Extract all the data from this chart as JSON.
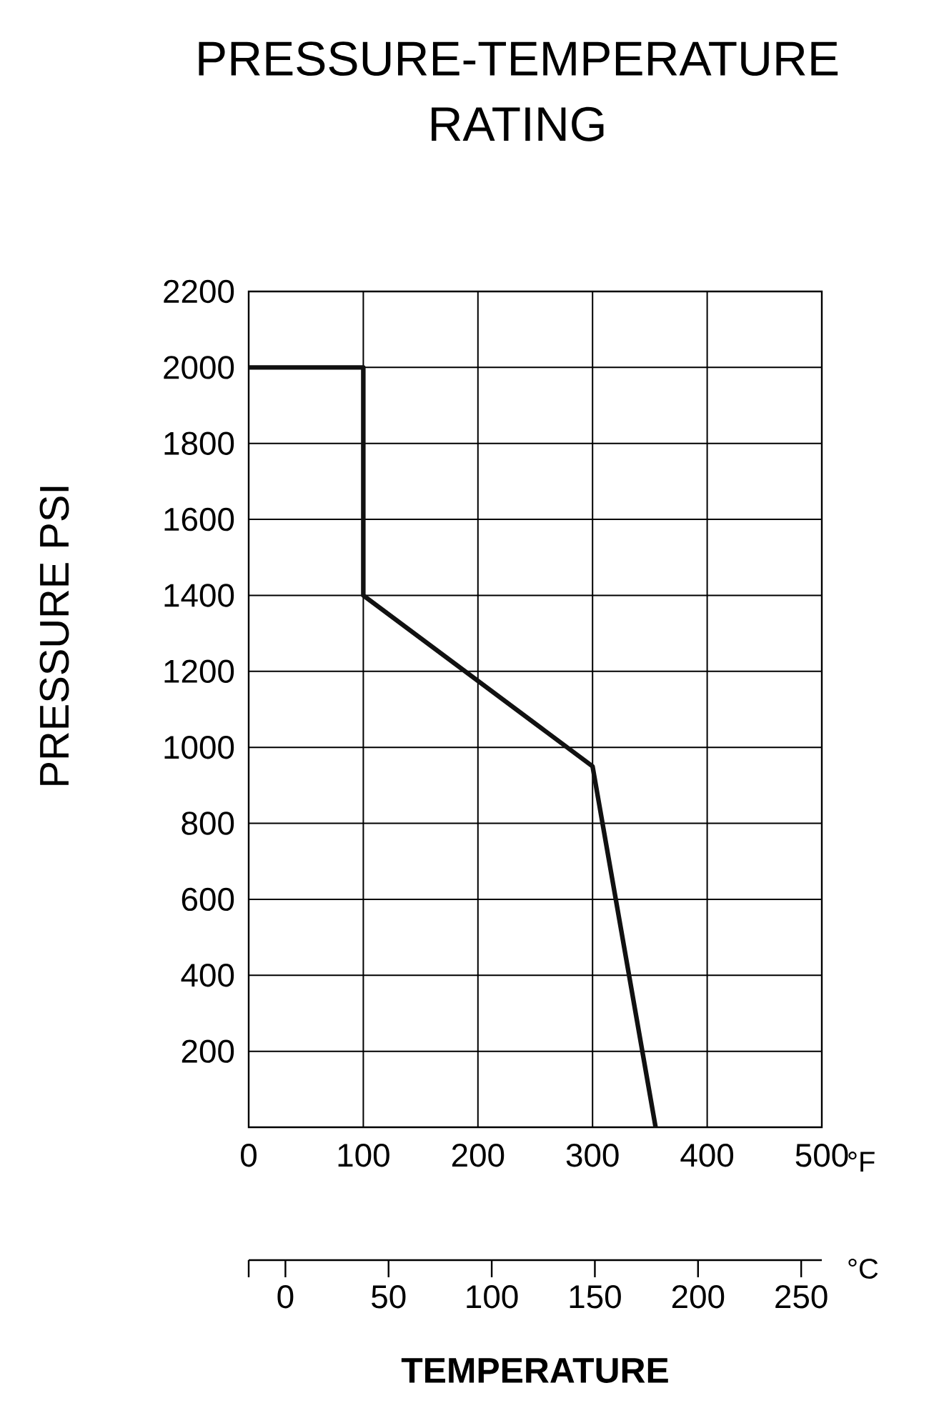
{
  "chart_data": {
    "type": "line",
    "title": "PRESSURE-TEMPERATURE RATING",
    "xlabel": "TEMPERATURE",
    "ylabel": "PRESSURE   PSI",
    "x": [
      0,
      100,
      100,
      300,
      355
    ],
    "series": [
      {
        "color": "#111111",
        "values": [
          2000,
          2000,
          1400,
          950,
          0
        ]
      }
    ],
    "xlim": [
      0,
      500
    ],
    "xticks": [
      0,
      100,
      200,
      300,
      400,
      500
    ],
    "ylim": [
      0,
      2200
    ],
    "yticks": [
      {
        "value": 0,
        "label": null
      },
      200,
      400,
      600,
      800,
      1000,
      1200,
      1400,
      1600,
      1800,
      2000,
      2200
    ],
    "x2lim": [
      -17.8,
      260
    ],
    "x2ticks": [
      {
        "value": -17.8,
        "label": null
      },
      0,
      50,
      100,
      150,
      200,
      250
    ],
    "grid": true,
    "annotations": [
      "°F",
      "°C"
    ]
  }
}
